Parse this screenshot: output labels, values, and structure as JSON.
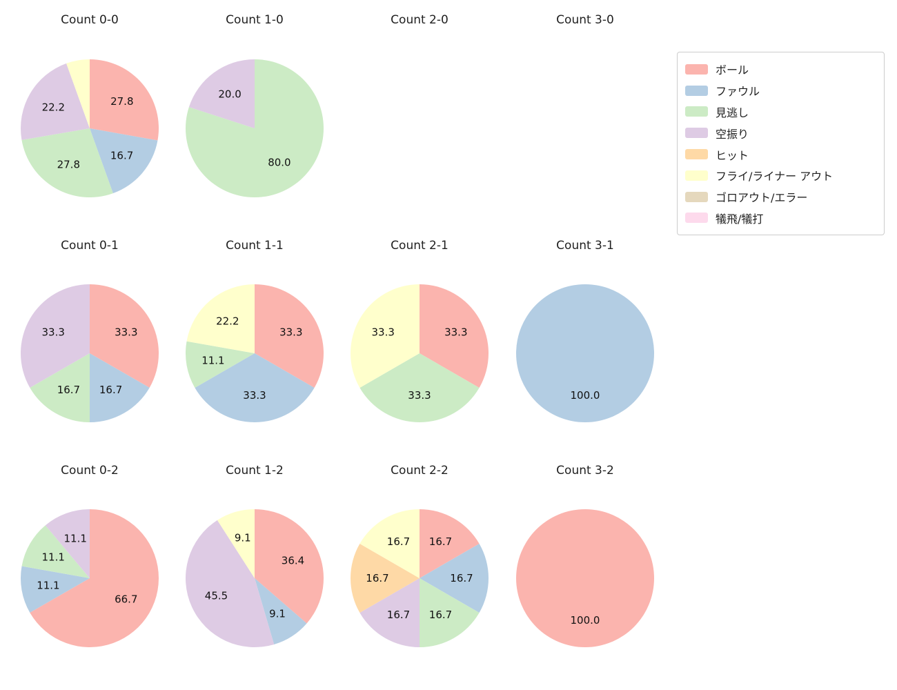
{
  "page": {
    "background": "#ffffff"
  },
  "legend": {
    "items": [
      {
        "label": "ボール",
        "color": "#fbb4ae"
      },
      {
        "label": "ファウル",
        "color": "#b3cde3"
      },
      {
        "label": "見逃し",
        "color": "#ccebc5"
      },
      {
        "label": "空振り",
        "color": "#decbe4"
      },
      {
        "label": "ヒット",
        "color": "#fed9a6"
      },
      {
        "label": "フライ/ライナー アウト",
        "color": "#ffffcc"
      },
      {
        "label": "ゴロアウト/エラー",
        "color": "#e5d8bd"
      },
      {
        "label": "犠飛/犠打",
        "color": "#fddaec"
      }
    ]
  },
  "chart_data": [
    {
      "type": "pie",
      "title": "Count 0-0",
      "slices": [
        {
          "label": "ボール",
          "value": 27.8,
          "pct_label": "27.8"
        },
        {
          "label": "ファウル",
          "value": 16.7,
          "pct_label": "16.7"
        },
        {
          "label": "見逃し",
          "value": 27.8,
          "pct_label": "27.8"
        },
        {
          "label": "空振り",
          "value": 22.2,
          "pct_label": "22.2"
        },
        {
          "label": "フライ/ライナー アウト",
          "value": 5.5,
          "pct_label": ""
        }
      ]
    },
    {
      "type": "pie",
      "title": "Count 1-0",
      "slices": [
        {
          "label": "見逃し",
          "value": 80.0,
          "pct_label": "80.0"
        },
        {
          "label": "空振り",
          "value": 20.0,
          "pct_label": "20.0"
        }
      ]
    },
    {
      "type": "pie",
      "title": "Count 2-0",
      "slices": []
    },
    {
      "type": "pie",
      "title": "Count 3-0",
      "slices": []
    },
    {
      "type": "pie",
      "title": "Count 0-1",
      "slices": [
        {
          "label": "ボール",
          "value": 33.3,
          "pct_label": "33.3"
        },
        {
          "label": "ファウル",
          "value": 16.7,
          "pct_label": "16.7"
        },
        {
          "label": "見逃し",
          "value": 16.7,
          "pct_label": "16.7"
        },
        {
          "label": "空振り",
          "value": 33.3,
          "pct_label": "33.3"
        }
      ]
    },
    {
      "type": "pie",
      "title": "Count 1-1",
      "slices": [
        {
          "label": "ボール",
          "value": 33.3,
          "pct_label": "33.3"
        },
        {
          "label": "ファウル",
          "value": 33.3,
          "pct_label": "33.3"
        },
        {
          "label": "見逃し",
          "value": 11.1,
          "pct_label": "11.1"
        },
        {
          "label": "フライ/ライナー アウト",
          "value": 22.2,
          "pct_label": "22.2"
        }
      ]
    },
    {
      "type": "pie",
      "title": "Count 2-1",
      "slices": [
        {
          "label": "ボール",
          "value": 33.3,
          "pct_label": "33.3"
        },
        {
          "label": "見逃し",
          "value": 33.3,
          "pct_label": "33.3"
        },
        {
          "label": "フライ/ライナー アウト",
          "value": 33.3,
          "pct_label": "33.3"
        }
      ]
    },
    {
      "type": "pie",
      "title": "Count 3-1",
      "slices": [
        {
          "label": "ファウル",
          "value": 100.0,
          "pct_label": "100.0"
        }
      ]
    },
    {
      "type": "pie",
      "title": "Count 0-2",
      "slices": [
        {
          "label": "ボール",
          "value": 66.7,
          "pct_label": "66.7"
        },
        {
          "label": "ファウル",
          "value": 11.1,
          "pct_label": "11.1"
        },
        {
          "label": "見逃し",
          "value": 11.1,
          "pct_label": "11.1"
        },
        {
          "label": "空振り",
          "value": 11.1,
          "pct_label": "11.1"
        }
      ]
    },
    {
      "type": "pie",
      "title": "Count 1-2",
      "slices": [
        {
          "label": "ボール",
          "value": 36.4,
          "pct_label": "36.4"
        },
        {
          "label": "ファウル",
          "value": 9.1,
          "pct_label": "9.1"
        },
        {
          "label": "空振り",
          "value": 45.5,
          "pct_label": "45.5"
        },
        {
          "label": "フライ/ライナー アウト",
          "value": 9.1,
          "pct_label": "9.1"
        }
      ]
    },
    {
      "type": "pie",
      "title": "Count 2-2",
      "slices": [
        {
          "label": "ボール",
          "value": 16.7,
          "pct_label": "16.7"
        },
        {
          "label": "ファウル",
          "value": 16.7,
          "pct_label": "16.7"
        },
        {
          "label": "見逃し",
          "value": 16.7,
          "pct_label": "16.7"
        },
        {
          "label": "空振り",
          "value": 16.7,
          "pct_label": "16.7"
        },
        {
          "label": "ヒット",
          "value": 16.7,
          "pct_label": "16.7"
        },
        {
          "label": "フライ/ライナー アウト",
          "value": 16.7,
          "pct_label": "16.7"
        }
      ]
    },
    {
      "type": "pie",
      "title": "Count 3-2",
      "slices": [
        {
          "label": "ボール",
          "value": 100.0,
          "pct_label": "100.0"
        }
      ]
    }
  ]
}
